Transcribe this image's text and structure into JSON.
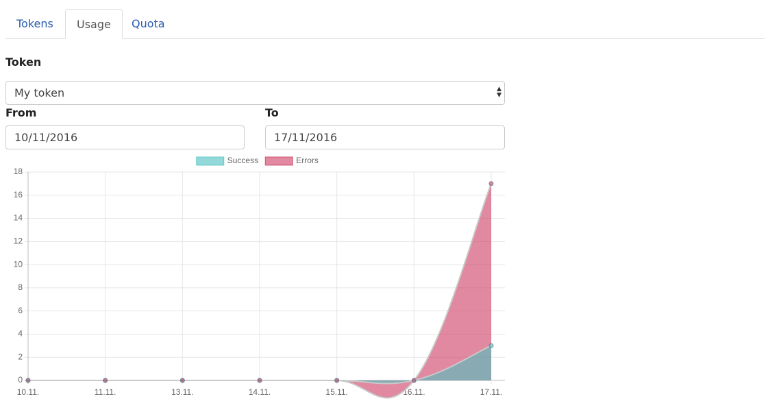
{
  "tabs": {
    "items": [
      "Tokens",
      "Usage",
      "Quota"
    ],
    "active": 1
  },
  "form": {
    "token_label": "Token",
    "token_value": "My token",
    "from_label": "From",
    "from_value": "10/11/2016",
    "to_label": "To",
    "to_value": "17/11/2016"
  },
  "chart_data": {
    "type": "line",
    "categories": [
      "10.11.",
      "11.11.",
      "13.11.",
      "14.11.",
      "15.11.",
      "16.11.",
      "17.11."
    ],
    "series": [
      {
        "name": "Success",
        "color": "#4bc0c0",
        "values": [
          0,
          0,
          0,
          0,
          0,
          0,
          3
        ]
      },
      {
        "name": "Errors",
        "color": "#cc3a63",
        "values": [
          0,
          0,
          0,
          0,
          0,
          0,
          17
        ]
      }
    ],
    "ylim": [
      0,
      18
    ],
    "yticks": [
      0,
      2,
      4,
      6,
      8,
      10,
      12,
      14,
      16,
      18
    ],
    "grid": true,
    "fill": true,
    "legend": "top"
  }
}
